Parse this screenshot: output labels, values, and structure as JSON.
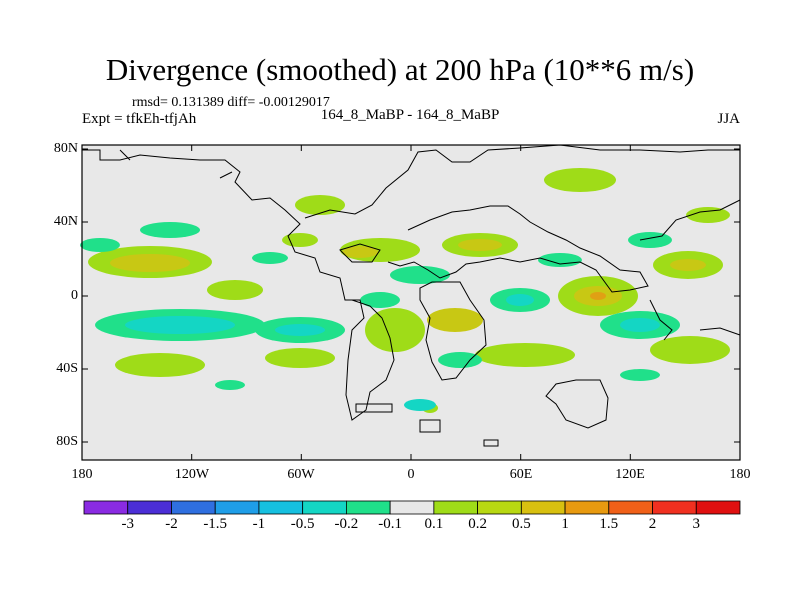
{
  "title": "Divergence (smoothed) at 200 hPa (10**6 m/s)",
  "stats": "rmsd= 0.131389 diff= -0.00129017",
  "experiment": "Expt = tfkEh-tfjAh",
  "comparison": "164_8_MaBP - 164_8_MaBP",
  "season": "JJA",
  "y_ticks": [
    "80N",
    "40N",
    "0",
    "40S",
    "80S"
  ],
  "x_ticks": [
    "180",
    "120W",
    "60W",
    "0",
    "60E",
    "120E",
    "180"
  ],
  "colorbar": {
    "labels": [
      "-3",
      "-2",
      "-1.5",
      "-1",
      "-0.5",
      "-0.2",
      "-0.1",
      "0.1",
      "0.2",
      "0.5",
      "1",
      "1.5",
      "2",
      "3"
    ],
    "colors": [
      "#8a2be2",
      "#4b2ed6",
      "#2f6fe0",
      "#1f9ee8",
      "#16c0e0",
      "#14d6c4",
      "#20e08a",
      "#e8e8e8",
      "#9fdc18",
      "#b8d812",
      "#d8c010",
      "#e89a10",
      "#f06018",
      "#f03020",
      "#e01010"
    ]
  },
  "map_colors": {
    "background": "#e8e8e8",
    "positive_low": "#9fdc18",
    "positive_mid": "#c8c814",
    "positive_high": "#e0a014",
    "negative_low": "#20e08a",
    "negative_mid": "#14d6c4",
    "negative_high": "#1fb4e6"
  }
}
